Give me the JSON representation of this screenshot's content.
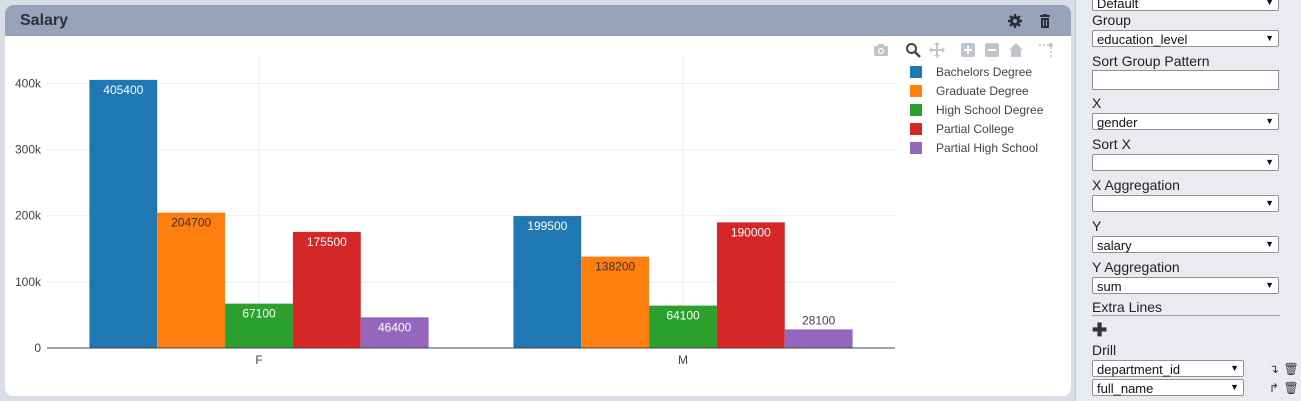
{
  "panel": {
    "title": "Salary",
    "icons": [
      "gear-icon",
      "trash-icon"
    ],
    "modebar": [
      "camera-icon",
      "zoom-icon",
      "pan-icon",
      "zoom-in-icon",
      "zoom-out-icon",
      "home-icon",
      "spike-lines-icon"
    ]
  },
  "chart_data": {
    "type": "bar",
    "categories": [
      "F",
      "M"
    ],
    "series": [
      {
        "name": "Bachelors Degree",
        "color": "#1f77b4",
        "values": [
          405400,
          199500
        ]
      },
      {
        "name": "Graduate Degree",
        "color": "#ff7f0e",
        "values": [
          204700,
          138200
        ]
      },
      {
        "name": "High School Degree",
        "color": "#2ca02c",
        "values": [
          67100,
          64100
        ]
      },
      {
        "name": "Partial College",
        "color": "#d62728",
        "values": [
          175500,
          190000
        ]
      },
      {
        "name": "Partial High School",
        "color": "#9467bd",
        "values": [
          46400,
          28100
        ]
      }
    ],
    "ylim": [
      0,
      440000
    ],
    "yticks": [
      0,
      100000,
      200000,
      300000,
      400000
    ],
    "ytick_labels": [
      "0",
      "100k",
      "200k",
      "300k",
      "400k"
    ],
    "grid": true,
    "legend": "top-right"
  },
  "side": {
    "top_select": "Default",
    "group_label": "Group",
    "group_value": "education_level",
    "sort_group_label": "Sort Group Pattern",
    "sort_group_value": "",
    "x_label": "X",
    "x_value": "gender",
    "sort_x_label": "Sort X",
    "sort_x_value": "",
    "x_agg_label": "X Aggregation",
    "x_agg_value": "",
    "y_label": "Y",
    "y_value": "salary",
    "y_agg_label": "Y Aggregation",
    "y_agg_value": "sum",
    "extra_lines_label": "Extra Lines",
    "drill_label": "Drill",
    "drill_items": [
      "department_id",
      "full_name"
    ]
  }
}
